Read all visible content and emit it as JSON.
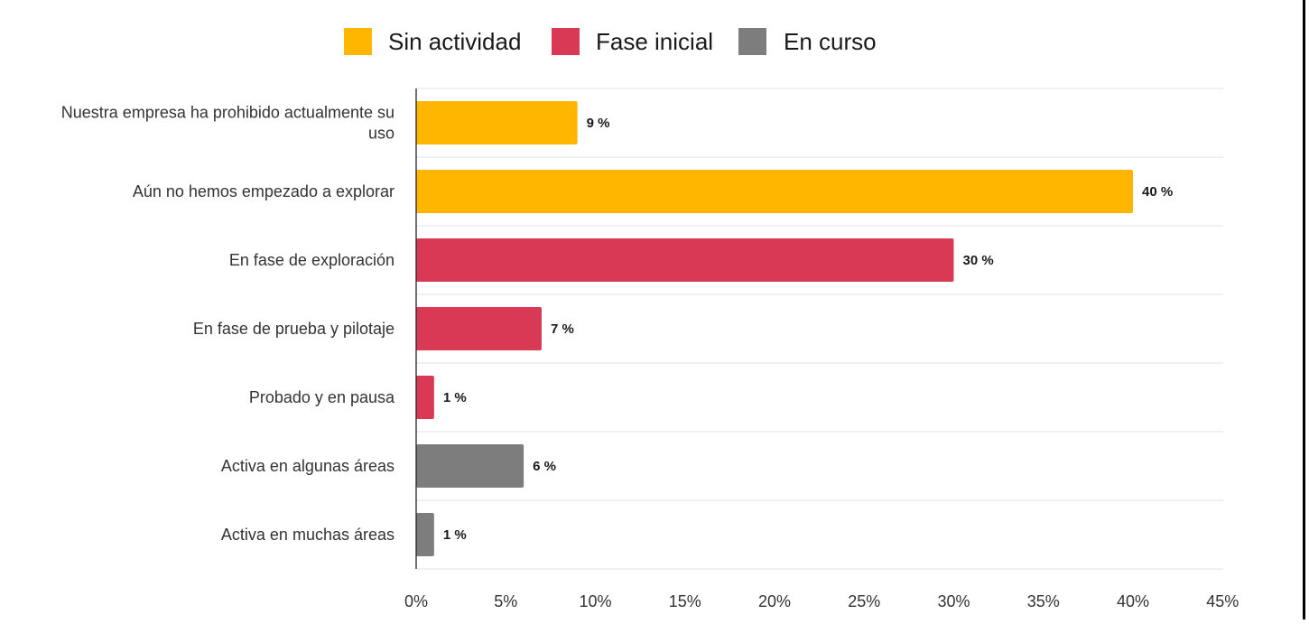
{
  "chart_data": {
    "type": "bar",
    "orientation": "horizontal",
    "title": "",
    "xlabel": "",
    "ylabel": "",
    "xlim": [
      0,
      45
    ],
    "x_ticks": [
      0,
      5,
      10,
      15,
      20,
      25,
      30,
      35,
      40,
      45
    ],
    "x_tick_labels": [
      "0%",
      "5%",
      "10%",
      "15%",
      "20%",
      "25%",
      "30%",
      "35%",
      "40%",
      "45%"
    ],
    "grid": "horizontal-separators",
    "legend_position": "top-center",
    "legend": [
      {
        "name": "Sin actividad",
        "color": "#FFB600"
      },
      {
        "name": "Fase inicial",
        "color": "#D93954"
      },
      {
        "name": "En curso",
        "color": "#7D7D7D"
      }
    ],
    "categories": [
      [
        "Nuestra empresa ha prohibido actualmente su",
        "uso"
      ],
      [
        "Aún no hemos empezado a explorar"
      ],
      [
        "En fase de exploración"
      ],
      [
        "En fase de prueba y pilotaje"
      ],
      [
        "Probado y en pausa"
      ],
      [
        "Activa en algunas áreas"
      ],
      [
        "Activa en muchas áreas"
      ]
    ],
    "values": [
      9,
      40,
      30,
      7,
      1,
      6,
      1
    ],
    "value_labels": [
      "9 %",
      "40 %",
      "30 %",
      "7 %",
      "1 %",
      "6 %",
      "1 %"
    ],
    "series_index": [
      0,
      0,
      1,
      1,
      1,
      2,
      2
    ]
  }
}
